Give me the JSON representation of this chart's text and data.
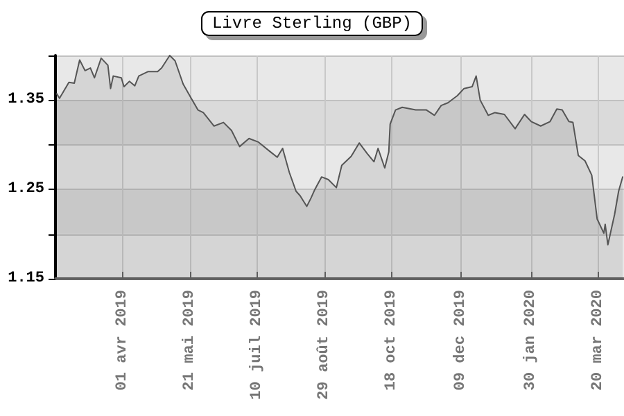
{
  "chart_data": {
    "type": "area",
    "title": "Livre Sterling (GBP)",
    "x": [
      "2019-02-11",
      "2019-02-13",
      "2019-02-20",
      "2019-02-24",
      "2019-02-28",
      "2019-03-04",
      "2019-03-08",
      "2019-03-11",
      "2019-03-16",
      "2019-03-21",
      "2019-03-23",
      "2019-03-25",
      "2019-03-31",
      "2019-04-02",
      "2019-04-06",
      "2019-04-10",
      "2019-04-13",
      "2019-04-20",
      "2019-04-27",
      "2019-04-30",
      "2019-05-06",
      "2019-05-10",
      "2019-05-16",
      "2019-05-22",
      "2019-05-27",
      "2019-05-31",
      "2019-06-08",
      "2019-06-15",
      "2019-06-21",
      "2019-06-27",
      "2019-07-04",
      "2019-07-11",
      "2019-07-20",
      "2019-07-25",
      "2019-07-29",
      "2019-08-03",
      "2019-08-08",
      "2019-08-11",
      "2019-08-16",
      "2019-08-19",
      "2019-08-22",
      "2019-08-27",
      "2019-09-01",
      "2019-09-07",
      "2019-09-11",
      "2019-09-18",
      "2019-09-24",
      "2019-09-30",
      "2019-10-05",
      "2019-10-08",
      "2019-10-13",
      "2019-10-16",
      "2019-10-17",
      "2019-10-21",
      "2019-10-26",
      "2019-11-05",
      "2019-11-13",
      "2019-11-19",
      "2019-11-24",
      "2019-11-29",
      "2019-12-06",
      "2019-12-11",
      "2019-12-17",
      "2019-12-20",
      "2019-12-23",
      "2019-12-29",
      "2020-01-03",
      "2020-01-10",
      "2020-01-18",
      "2020-01-25",
      "2020-01-30",
      "2020-02-06",
      "2020-02-13",
      "2020-02-18",
      "2020-02-22",
      "2020-02-27",
      "2020-03-01",
      "2020-03-05",
      "2020-03-10",
      "2020-03-15",
      "2020-03-19",
      "2020-03-24",
      "2020-03-25",
      "2020-03-27",
      "2020-04-01",
      "2020-04-04",
      "2020-04-07"
    ],
    "series": [
      {
        "color": "#555555",
        "values": [
          1.357,
          1.352,
          1.37,
          1.369,
          1.395,
          1.383,
          1.386,
          1.375,
          1.397,
          1.389,
          1.363,
          1.377,
          1.375,
          1.365,
          1.371,
          1.366,
          1.377,
          1.382,
          1.382,
          1.386,
          1.4,
          1.394,
          1.368,
          1.352,
          1.339,
          1.336,
          1.321,
          1.325,
          1.316,
          1.298,
          1.307,
          1.303,
          1.292,
          1.286,
          1.296,
          1.269,
          1.248,
          1.243,
          1.231,
          1.24,
          1.25,
          1.264,
          1.261,
          1.252,
          1.277,
          1.287,
          1.302,
          1.29,
          1.281,
          1.296,
          1.274,
          1.292,
          1.323,
          1.339,
          1.342,
          1.339,
          1.339,
          1.333,
          1.344,
          1.347,
          1.355,
          1.363,
          1.365,
          1.377,
          1.35,
          1.333,
          1.336,
          1.334,
          1.318,
          1.334,
          1.326,
          1.321,
          1.326,
          1.34,
          1.339,
          1.326,
          1.325,
          1.288,
          1.282,
          1.266,
          1.217,
          1.201,
          1.211,
          1.188,
          1.222,
          1.248,
          1.264
        ]
      }
    ],
    "xlim": [
      "2019-02-10",
      "2020-04-08"
    ],
    "xticks": [
      {
        "value": "2019-04-01",
        "label": "01 avr 2019"
      },
      {
        "value": "2019-05-21",
        "label": "21 mai 2019"
      },
      {
        "value": "2019-07-10",
        "label": "10 juil 2019"
      },
      {
        "value": "2019-08-29",
        "label": "29 août 2019"
      },
      {
        "value": "2019-10-18",
        "label": "18 oct 2019"
      },
      {
        "value": "2019-12-09",
        "label": "09 dec 2019"
      },
      {
        "value": "2020-01-30",
        "label": "30 jan 2020"
      },
      {
        "value": "2020-03-20",
        "label": "20 mar 2020"
      }
    ],
    "ylim": [
      1.15,
      1.4
    ],
    "yticks": [
      1.15,
      {
        "value": 1.2,
        "label": null
      },
      1.25,
      {
        "value": 1.3,
        "label": null
      },
      1.35,
      {
        "value": 1.4,
        "label": null
      }
    ],
    "grid": true,
    "marker": "none",
    "line_style": "solid"
  }
}
